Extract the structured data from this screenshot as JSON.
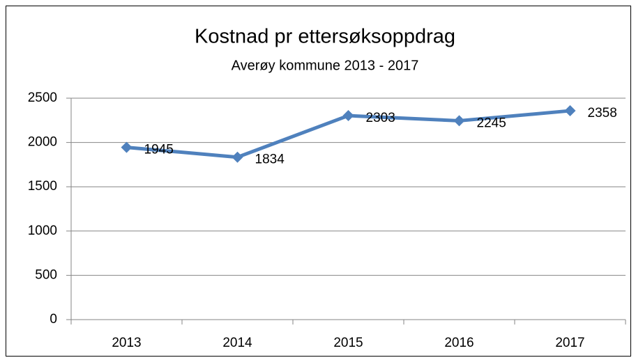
{
  "chart_data": {
    "type": "line",
    "title": "Kostnad pr ettersøksoppdrag",
    "subtitle": "Averøy kommune 2013 - 2017",
    "categories": [
      "2013",
      "2014",
      "2015",
      "2016",
      "2017"
    ],
    "series": [
      {
        "name": "Kostnad",
        "color": "#4f81bd",
        "values": [
          1945,
          1834,
          2303,
          2245,
          2358
        ]
      }
    ],
    "ylim": [
      0,
      2500
    ],
    "yticks": [
      0,
      500,
      1000,
      1500,
      2000,
      2500
    ],
    "grid": true,
    "data_labels": true
  }
}
